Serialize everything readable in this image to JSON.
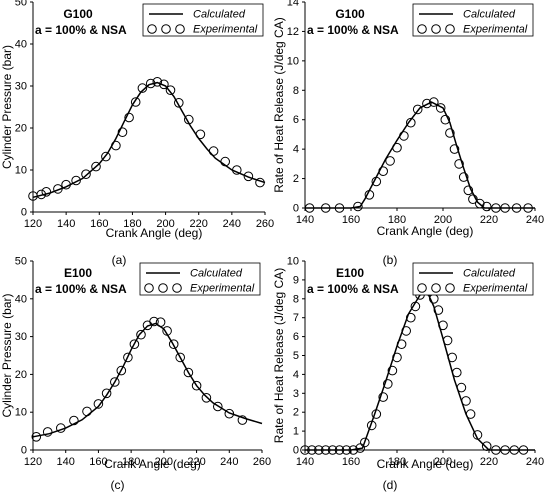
{
  "chart_data": [
    {
      "panel_label": "(a)",
      "type": "line",
      "title": "G100",
      "subtitle": "a = 100% & NSA",
      "xlabel": "Crank Angle (deg)",
      "ylabel": "Cylinder Pressure (bar)",
      "xlim": [
        120,
        260
      ],
      "ylim": [
        0,
        50
      ],
      "xticks": [
        120,
        140,
        160,
        180,
        200,
        220,
        240,
        260
      ],
      "yticks": [
        0,
        10,
        20,
        30,
        40,
        50
      ],
      "legend_position": "top-right",
      "series": [
        {
          "name": "Calculated",
          "style": "line",
          "x": [
            120,
            130,
            140,
            150,
            160,
            165,
            170,
            175,
            180,
            185,
            190,
            195,
            200,
            205,
            210,
            215,
            220,
            225,
            230,
            240,
            250,
            260
          ],
          "y": [
            3.5,
            4.5,
            6.0,
            8.0,
            11.5,
            14.0,
            17.5,
            21.5,
            25.5,
            28.5,
            30.3,
            30.8,
            30.0,
            27.5,
            24.0,
            20.5,
            17.5,
            15.0,
            12.8,
            10.0,
            8.3,
            7.0
          ]
        },
        {
          "name": "Experimental",
          "style": "circle",
          "x": [
            120,
            125,
            128,
            135,
            140,
            146,
            152,
            158,
            164,
            170,
            174,
            178,
            182,
            186,
            191,
            195,
            199,
            203,
            208,
            214,
            221,
            229,
            236,
            243,
            250,
            257
          ],
          "y": [
            3.8,
            4.2,
            4.8,
            5.5,
            6.5,
            7.5,
            9.0,
            10.8,
            13.2,
            15.8,
            19.0,
            22.5,
            26.2,
            29.5,
            30.6,
            31.0,
            30.4,
            29.0,
            26.0,
            22.0,
            18.5,
            14.5,
            12.0,
            10.0,
            8.5,
            7.0
          ]
        }
      ]
    },
    {
      "panel_label": "(b)",
      "type": "line",
      "title": "G100",
      "subtitle": "a = 100% & NSA",
      "xlabel": "Crank Angle (deg)",
      "ylabel": "Rate of Heat Release (J/deg CA)",
      "xlim": [
        140,
        240
      ],
      "ylim": [
        0,
        14
      ],
      "xticks": [
        140,
        160,
        180,
        200,
        220,
        240
      ],
      "yticks": [
        0,
        2,
        4,
        6,
        8,
        10,
        12,
        14
      ],
      "legend_position": "top-right",
      "series": [
        {
          "name": "Calculated",
          "style": "line",
          "x": [
            140,
            150,
            160,
            164,
            166,
            170,
            175,
            180,
            185,
            190,
            195,
            200,
            203,
            206,
            209,
            212,
            215,
            218,
            225,
            240
          ],
          "y": [
            0,
            0,
            0,
            0.1,
            0.6,
            1.8,
            3.3,
            4.6,
            5.8,
            6.8,
            7.2,
            6.8,
            5.8,
            4.2,
            2.7,
            1.3,
            0.4,
            0,
            0,
            0
          ]
        },
        {
          "name": "Experimental",
          "style": "circle",
          "x": [
            142,
            149,
            155,
            163,
            168,
            171,
            174,
            177,
            180,
            183,
            186,
            189,
            193,
            196,
            199,
            201,
            203,
            205,
            207,
            209,
            211,
            213,
            216,
            219,
            223,
            227,
            232,
            237
          ],
          "y": [
            0,
            0,
            0,
            0.1,
            0.9,
            1.8,
            2.5,
            3.2,
            4.1,
            4.9,
            5.8,
            6.7,
            7.1,
            7.2,
            6.8,
            6.0,
            5.1,
            4.0,
            3.0,
            2.1,
            1.2,
            0.6,
            0.3,
            0.1,
            0,
            0,
            0,
            0
          ]
        }
      ]
    },
    {
      "panel_label": "(c)",
      "type": "line",
      "title": "E100",
      "subtitle": "a = 100% & NSA",
      "xlabel": "Crank Angle (deg)",
      "ylabel": "Cylinder Pressure (bar)",
      "xlim": [
        120,
        260
      ],
      "ylim": [
        0,
        50
      ],
      "xticks": [
        120,
        140,
        160,
        180,
        200,
        220,
        240,
        260
      ],
      "yticks": [
        0,
        10,
        20,
        30,
        40,
        50
      ],
      "legend_position": "top-right",
      "series": [
        {
          "name": "Calculated",
          "style": "line",
          "x": [
            120,
            130,
            140,
            150,
            160,
            165,
            170,
            175,
            180,
            185,
            190,
            195,
            200,
            205,
            210,
            215,
            220,
            225,
            230,
            240,
            250,
            260
          ],
          "y": [
            3.5,
            4.3,
            5.8,
            8.0,
            11.5,
            14.5,
            18.0,
            22.0,
            26.5,
            30.5,
            32.8,
            33.5,
            32.0,
            28.5,
            24.5,
            20.5,
            17.0,
            14.5,
            12.5,
            9.8,
            8.3,
            7.0
          ]
        },
        {
          "name": "Experimental",
          "style": "circle",
          "x": [
            122,
            129,
            137,
            145,
            153,
            160,
            165,
            170,
            174,
            178,
            182,
            186,
            190,
            194,
            198,
            202,
            206,
            210,
            215,
            220,
            226,
            233,
            240,
            248
          ],
          "y": [
            3.5,
            4.8,
            5.8,
            7.8,
            10.2,
            12.2,
            15.0,
            18.0,
            21.0,
            24.5,
            28.0,
            30.5,
            33.0,
            34.0,
            33.8,
            31.5,
            28.0,
            24.5,
            20.5,
            17.0,
            13.8,
            11.5,
            9.6,
            7.9
          ]
        }
      ]
    },
    {
      "panel_label": "(d)",
      "type": "line",
      "title": "E100",
      "subtitle": "a = 100% & NSA",
      "xlabel": "Crank Angle (deg)",
      "ylabel": "Rate of Heat Release (J/deg CA)",
      "xlim": [
        140,
        240
      ],
      "ylim": [
        0,
        10
      ],
      "xticks": [
        140,
        160,
        180,
        200,
        220,
        240
      ],
      "yticks": [
        0,
        1,
        2,
        3,
        4,
        5,
        6,
        7,
        8,
        9,
        10
      ],
      "legend_position": "top-right",
      "series": [
        {
          "name": "Calculated",
          "style": "line",
          "x": [
            140,
            150,
            160,
            165,
            170,
            175,
            180,
            185,
            190,
            193,
            196,
            200,
            205,
            210,
            215,
            220,
            240
          ],
          "y": [
            0,
            0,
            0,
            0.1,
            1.8,
            3.6,
            5.5,
            7.2,
            8.2,
            8.4,
            7.6,
            5.9,
            3.7,
            1.9,
            0.6,
            0,
            0
          ]
        },
        {
          "name": "Experimental",
          "style": "circle",
          "x": [
            140,
            143,
            146,
            149,
            152,
            155,
            158,
            161,
            164,
            166,
            169,
            171,
            174,
            176,
            178,
            180,
            182,
            184,
            186,
            188,
            190,
            192,
            194,
            196,
            198,
            200,
            202,
            204,
            206,
            208,
            210,
            212,
            215,
            219,
            223,
            227,
            231,
            235
          ],
          "y": [
            0,
            0,
            0,
            0,
            0,
            0,
            0,
            0,
            0.1,
            0.4,
            1.3,
            1.9,
            2.8,
            3.5,
            4.2,
            4.9,
            5.6,
            6.3,
            7.0,
            7.6,
            8.2,
            8.6,
            8.4,
            8.0,
            7.4,
            6.6,
            5.8,
            4.9,
            4.1,
            3.3,
            2.6,
            1.9,
            0.8,
            0.2,
            0,
            0,
            0,
            0
          ]
        }
      ]
    }
  ]
}
